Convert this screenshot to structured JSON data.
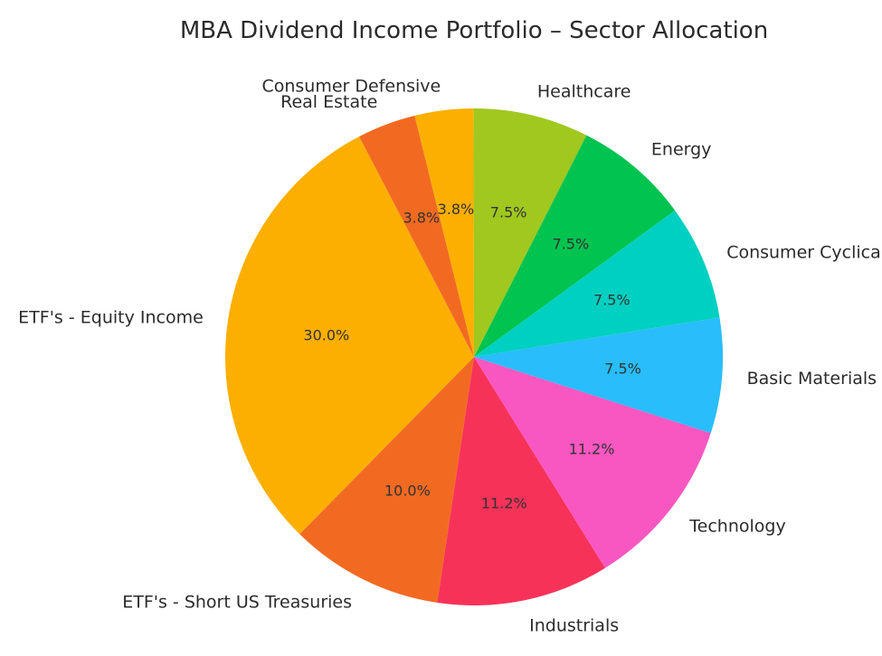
{
  "chart_data": {
    "type": "pie",
    "title": "MBA Dividend Income Portfolio – Sector Allocation",
    "slices": [
      {
        "label": "ETF's - Equity Income",
        "value": 30.0,
        "pct_label": "30.0%",
        "color": "#FDAF00"
      },
      {
        "label": "ETF's - Short US Treasuries",
        "value": 10.0,
        "pct_label": "10.0%",
        "color": "#F26A22"
      },
      {
        "label": "Industrials",
        "value": 11.2,
        "pct_label": "11.2%",
        "color": "#F73259"
      },
      {
        "label": "Technology",
        "value": 11.2,
        "pct_label": "11.2%",
        "color": "#F857C1"
      },
      {
        "label": "Basic Materials",
        "value": 7.5,
        "pct_label": "7.5%",
        "color": "#29BDFB"
      },
      {
        "label": "Consumer Cyclical",
        "value": 7.5,
        "pct_label": "7.5%",
        "color": "#00D0C1"
      },
      {
        "label": "Energy",
        "value": 7.5,
        "pct_label": "7.5%",
        "color": "#00C350"
      },
      {
        "label": "Healthcare",
        "value": 7.5,
        "pct_label": "7.5%",
        "color": "#A0C81F"
      },
      {
        "label": "Consumer Defensive",
        "value": 3.8,
        "pct_label": "3.8%",
        "color": "#FDAF00"
      },
      {
        "label": "Real Estate",
        "value": 3.8,
        "pct_label": "3.8%",
        "color": "#F26A22"
      }
    ]
  }
}
